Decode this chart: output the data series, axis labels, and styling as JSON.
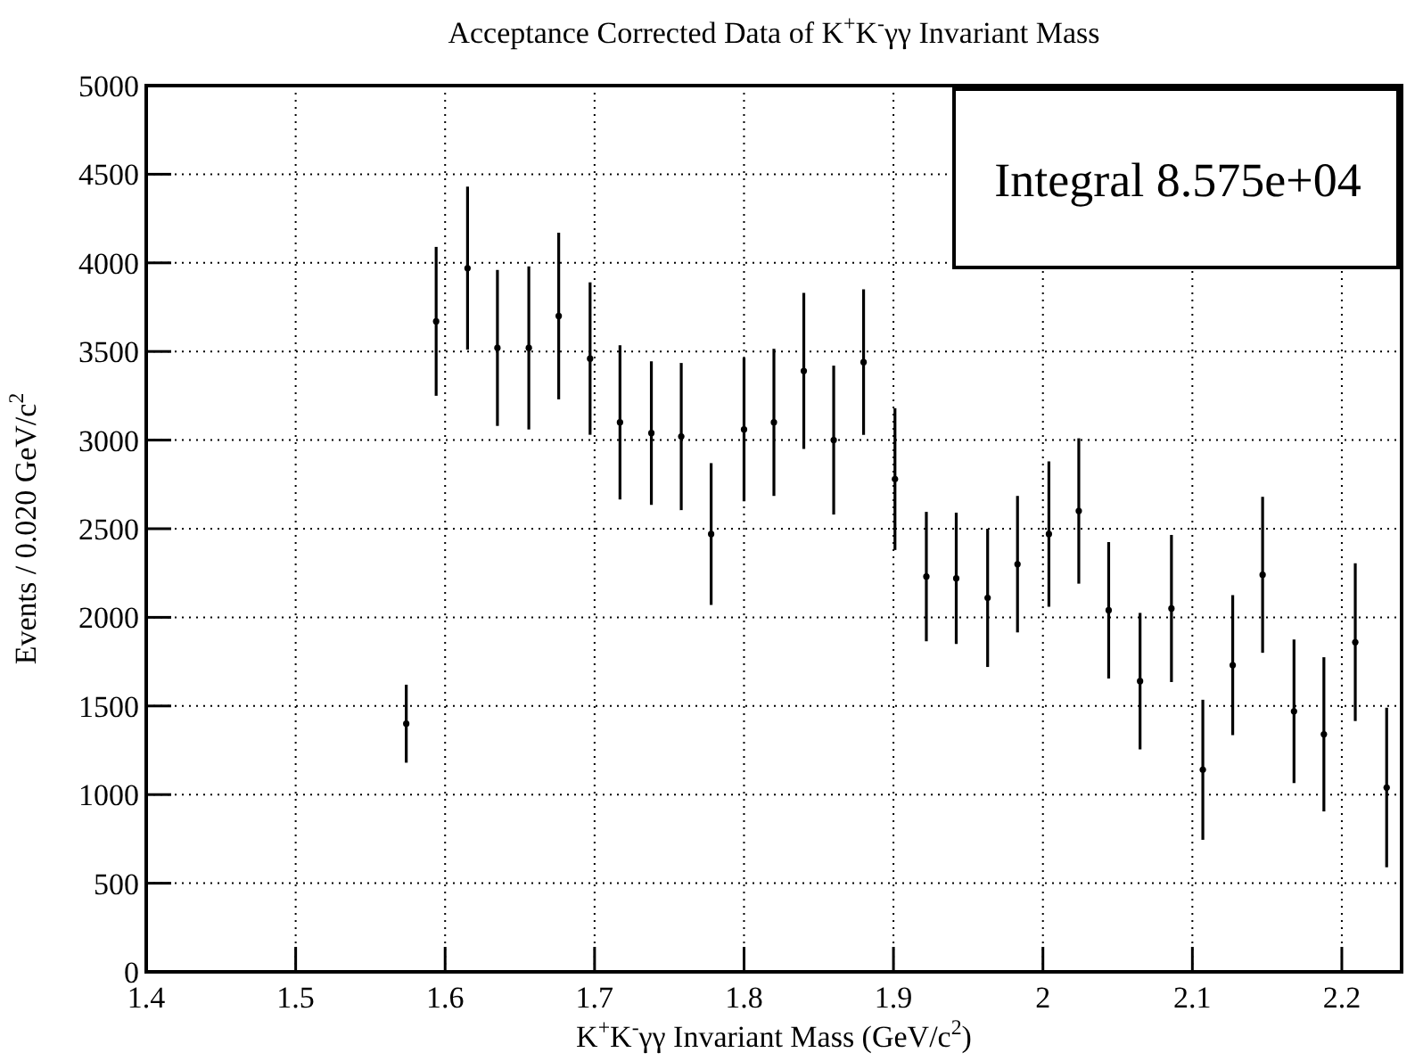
{
  "chart_data": {
    "type": "scatter",
    "title": "Acceptance Corrected Data of K$^{+}$K$^{-}$γγ Invariant Mass",
    "xlabel": "K$^{+}$K$^{-}$γγ Invariant Mass (GeV/c$^{2}$)",
    "ylabel": "Events / 0.020 GeV/c$^{2}$",
    "annotations": [
      "Integral 8.575e+04"
    ],
    "xlim": [
      1.4,
      2.24
    ],
    "xticks": [
      1.4,
      1.5,
      1.6,
      1.7,
      1.8,
      1.9,
      2,
      2.1,
      2.2
    ],
    "ylim": [
      0,
      5000
    ],
    "yticks": [
      0,
      500,
      1000,
      1500,
      2000,
      2500,
      3000,
      3500,
      4000,
      4500,
      5000
    ],
    "grid": true,
    "marker": "circle",
    "series": [
      {
        "color": "#000000",
        "x": [
          1.574,
          1.594,
          1.615,
          1.635,
          1.656,
          1.676,
          1.697,
          1.717,
          1.738,
          1.758,
          1.778,
          1.8,
          1.82,
          1.84,
          1.86,
          1.88,
          1.901,
          1.922,
          1.942,
          1.963,
          1.983,
          2.004,
          2.024,
          2.044,
          2.065,
          2.086,
          2.107,
          2.127,
          2.147,
          2.168,
          2.188,
          2.209,
          2.23
        ],
        "values": [
          1400,
          3670,
          3970,
          3520,
          3520,
          3700,
          3460,
          3100,
          3040,
          3020,
          2470,
          3060,
          3100,
          3390,
          3000,
          3440,
          2780,
          2230,
          2220,
          2110,
          2300,
          2470,
          2600,
          2040,
          1640,
          2050,
          1140,
          1730,
          2240,
          1470,
          1340,
          1860,
          1040
        ],
        "errors": [
          220,
          420,
          460,
          440,
          460,
          470,
          430,
          435,
          405,
          415,
          400,
          405,
          415,
          440,
          420,
          410,
          400,
          365,
          370,
          390,
          385,
          410,
          410,
          385,
          385,
          415,
          395,
          395,
          440,
          405,
          435,
          445,
          450
        ]
      }
    ]
  }
}
